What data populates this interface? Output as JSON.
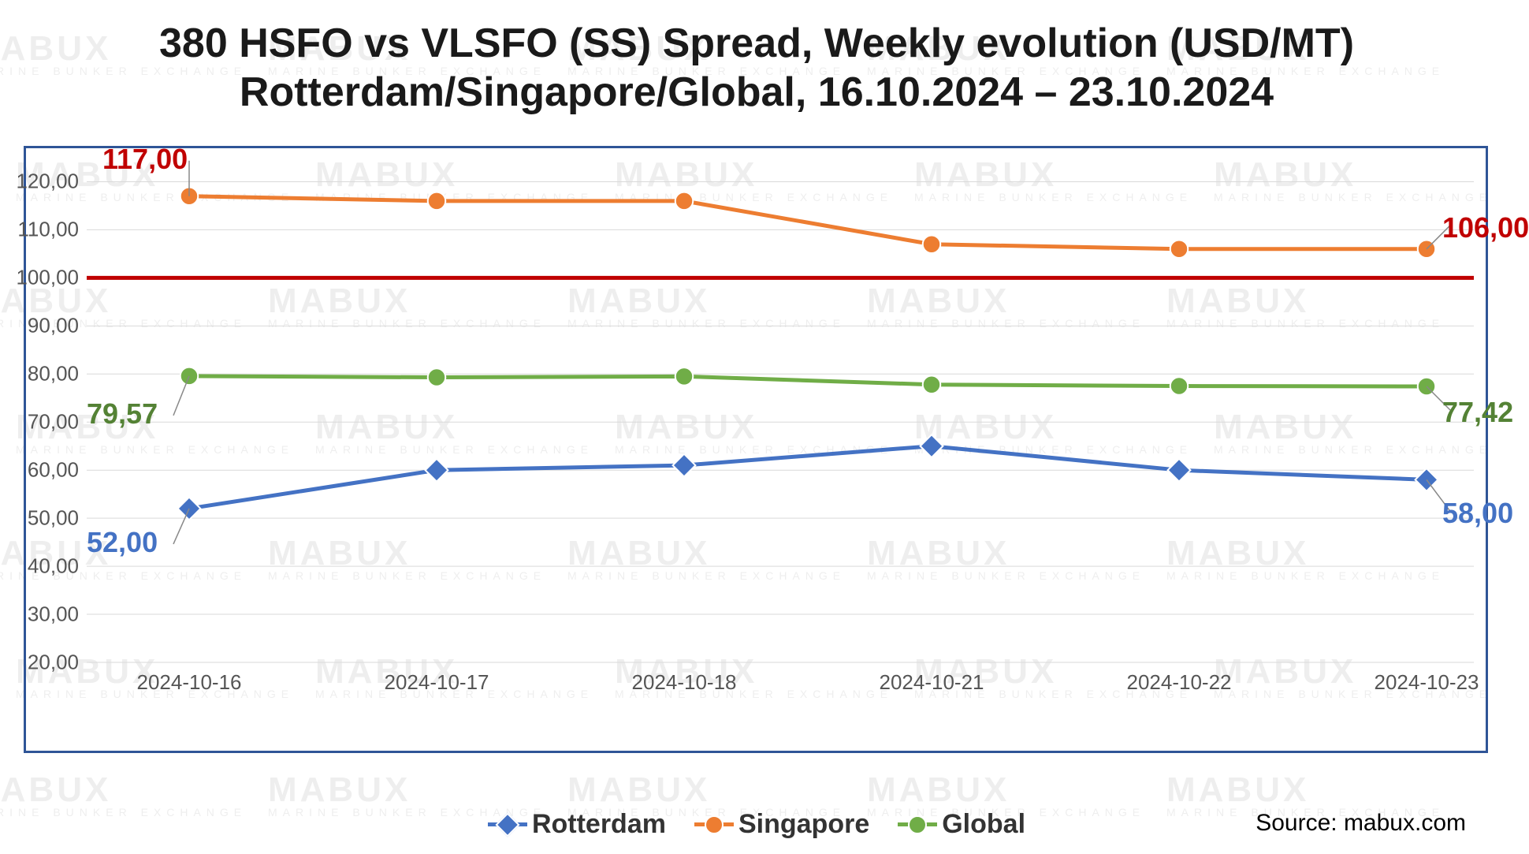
{
  "title_line1": "380 HSFO vs VLSFO (SS) Spread, Weekly evolution (USD/MT)",
  "title_line2": "Rotterdam/Singapore/Global, 16.10.2024 – 23.10.2024",
  "title_fontsize": 52,
  "title_color": "#1a1a1a",
  "chart_border_color": "#2f5597",
  "background_color": "#ffffff",
  "gridline_color": "#d9d9d9",
  "axis_label_color": "#555555",
  "axis_label_fontsize": 26,
  "watermark_text_big": "MABUX",
  "watermark_text_small": "MARINE BUNKER EXCHANGE",
  "watermark_color": "#d0d0d0",
  "source_text": "Source: mabux.com",
  "source_color": "#000000",
  "source_fontsize": 30,
  "chart": {
    "type": "line",
    "x_categories": [
      "2024-10-16",
      "2024-10-17",
      "2024-10-18",
      "2024-10-21",
      "2024-10-22",
      "2024-10-23"
    ],
    "ylim": [
      20,
      125
    ],
    "yticks": [
      20,
      30,
      40,
      50,
      60,
      70,
      80,
      90,
      100,
      110,
      120
    ],
    "ytick_labels": [
      "20,00",
      "30,00",
      "40,00",
      "50,00",
      "60,00",
      "70,00",
      "80,00",
      "90,00",
      "100,00",
      "110,00",
      "120,00"
    ],
    "reference_line": {
      "value": 100,
      "color": "#c00000",
      "width": 5
    },
    "series": [
      {
        "name": "Rotterdam",
        "color": "#4472c4",
        "marker": "diamond",
        "marker_size": 18,
        "line_width": 5,
        "values": [
          52.0,
          60.0,
          61.0,
          65.0,
          60.0,
          58.0
        ],
        "start_label": "52,00",
        "end_label": "58,00",
        "label_color": "#4472c4"
      },
      {
        "name": "Singapore",
        "color": "#ed7d31",
        "marker": "circle",
        "marker_size": 18,
        "line_width": 5,
        "values": [
          117.0,
          116.0,
          116.0,
          107.0,
          106.0,
          106.0
        ],
        "start_label": "117,00",
        "end_label": "106,00",
        "label_color": "#c00000"
      },
      {
        "name": "Global",
        "color": "#70ad47",
        "marker": "circle",
        "marker_size": 18,
        "line_width": 5,
        "values": [
          79.57,
          79.3,
          79.5,
          77.8,
          77.5,
          77.42
        ],
        "start_label": "79,57",
        "end_label": "77,42",
        "label_color": "#548235"
      }
    ],
    "legend_fontsize": 34,
    "value_label_fontsize": 36
  }
}
